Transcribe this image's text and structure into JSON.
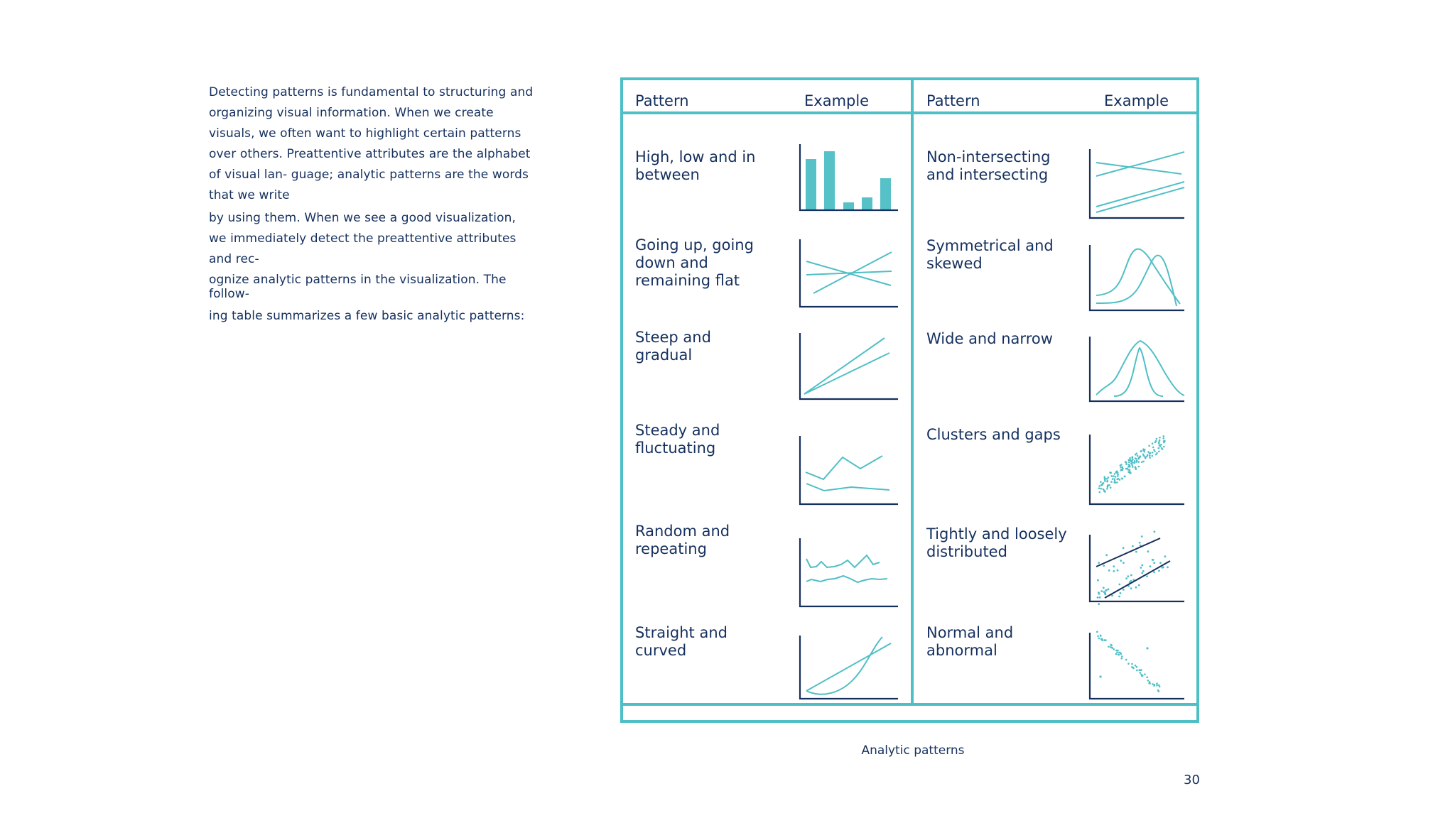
{
  "intro": {
    "line1": "Detecting patterns is fundamental to structuring and",
    "line2": "organizing visual information. When we create",
    "line3": "visuals, we often want to highlight certain patterns",
    "line4": "over others. Preattentive attributes are the alphabet",
    "line5": "of visual lan- guage; analytic patterns are the words",
    "line6": "that we write",
    "line7": "by using them. When we see a good visualization,",
    "line8": "we immediately detect the preattentive attributes",
    "line9": "and rec-",
    "line10": "ognize analytic patterns in the visualization. The",
    "line11": "follow-",
    "line12": "ing table summarizes a few basic analytic patterns:"
  },
  "table": {
    "header_pattern": "Pattern",
    "header_example": "Example",
    "left": [
      {
        "l1": "High, low and in",
        "l2": "between",
        "l3": "",
        "icon": "bar-chart-icon"
      },
      {
        "l1": "Going up, going",
        "l2": "down and",
        "l3": "remaining flat",
        "icon": "crossing-lines-icon"
      },
      {
        "l1": "Steep and",
        "l2": "gradual",
        "l3": "",
        "icon": "diverging-lines-icon"
      },
      {
        "l1": "Steady and",
        "l2": "fluctuating",
        "l3": "",
        "icon": "zigzag-line-icon"
      },
      {
        "l1": "Random and",
        "l2": "repeating",
        "l3": "",
        "icon": "wavy-lines-icon"
      },
      {
        "l1": "Straight and",
        "l2": "curved",
        "l3": "",
        "icon": "straight-curved-icon"
      }
    ],
    "right": [
      {
        "l1": "Non-intersecting",
        "l2": "and intersecting",
        "l3": "",
        "icon": "intersecting-lines-icon"
      },
      {
        "l1": "Symmetrical and",
        "l2": "skewed",
        "l3": "",
        "icon": "skewed-curves-icon"
      },
      {
        "l1": "Wide and narrow",
        "l2": "",
        "l3": "",
        "icon": "bell-curves-icon"
      },
      {
        "l1": "Clusters and gaps",
        "l2": "",
        "l3": "",
        "icon": "scatter-cluster-icon"
      },
      {
        "l1": "Tightly and loosely",
        "l2": "distributed",
        "l3": "",
        "icon": "scatter-regression-icon"
      },
      {
        "l1": "Normal and",
        "l2": "abnormal",
        "l3": "",
        "icon": "scatter-outliers-icon"
      }
    ]
  },
  "caption": "Analytic patterns",
  "page_number": "30",
  "colors": {
    "accent": "#4fbfc6",
    "text": "#15305e"
  }
}
